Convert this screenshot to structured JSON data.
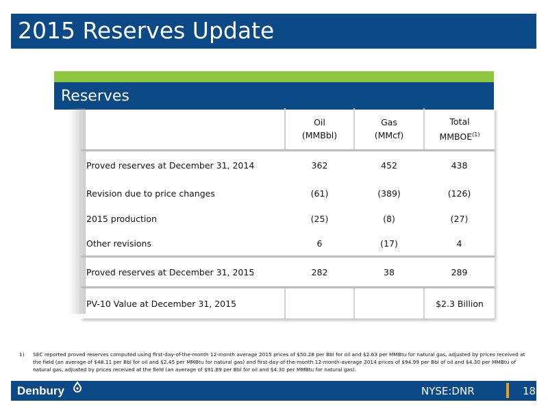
{
  "header": {
    "title": "2015 Reserves Update"
  },
  "section": {
    "title": "Reserves"
  },
  "table": {
    "columns": [
      {
        "line1": "Oil",
        "line2": "(MMBbl)"
      },
      {
        "line1": "Gas",
        "line2": "(MMcf)"
      },
      {
        "line1": "Total",
        "line2": "MMBOE",
        "sup": "(1)"
      }
    ],
    "rows": [
      {
        "label": "Proved reserves at December 31, 2014",
        "oil": "362",
        "gas": "452",
        "total": "438"
      },
      {
        "label": "Revision due to price changes",
        "oil": "(61)",
        "gas": "(389)",
        "total": "(126)"
      },
      {
        "label": "2015 production",
        "oil": "(25)",
        "gas": "(8)",
        "total": "(27)"
      },
      {
        "label": "Other revisions",
        "oil": "6",
        "gas": "(17)",
        "total": "4"
      }
    ],
    "total_row": {
      "label": "Proved reserves at December 31, 2015",
      "oil": "282",
      "gas": "38",
      "total": "289"
    },
    "pv_row": {
      "label": "PV-10 Value at December 31, 2015",
      "oil": "",
      "gas": "",
      "total": "$2.3 Billion"
    }
  },
  "footnote": {
    "number": "1)",
    "text": "SEC reported proved reserves computed using first-day-of-the-month 12-month average 2015 prices of $50.28 per Bbl for oil and $2.63 per MMBtu for natural gas, adjusted by prices received at the field (an average of $48.11 per Bbl for oil and $2.45 per MMBtu for natural gas) and first-day-of-the-month 12-month-average 2014 prices of $94.99 per Bbl of oil and $4.30 per MMBtu of natural gas, adjusted by prices received at the field (an average of $91.89 per Bbl for oil and $4.30 per MMBtu for natural gas)."
  },
  "footer": {
    "logo_text": "Denbury",
    "ticker": "NYSE:DNR",
    "page_number": "18"
  },
  "colors": {
    "brand_blue": "#0b4a86",
    "accent_green": "#8cc63f",
    "accent_orange": "#f0a020"
  }
}
